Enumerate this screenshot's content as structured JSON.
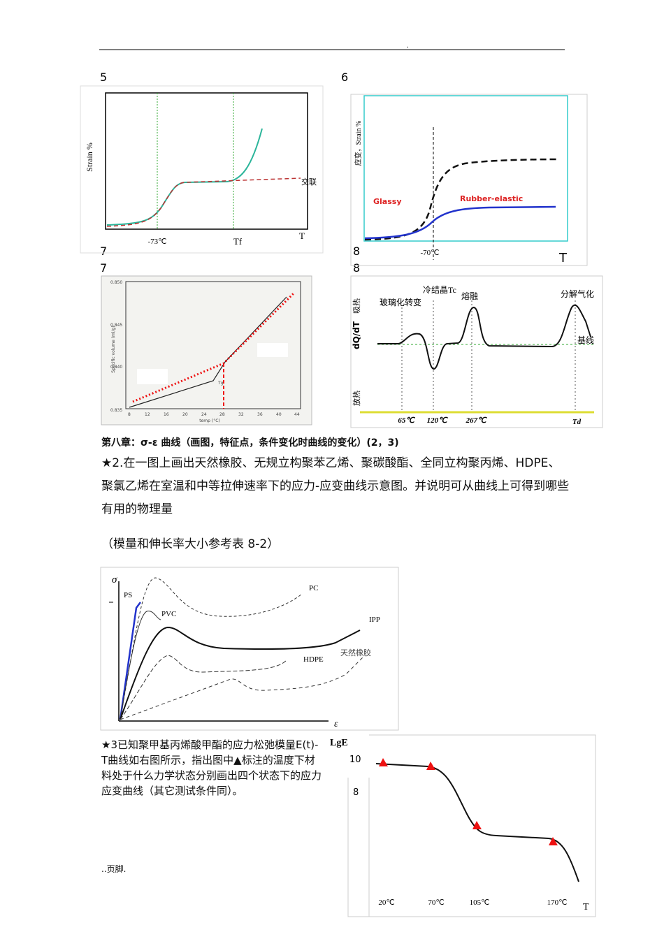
{
  "header": {
    "mark": "."
  },
  "figure_numbers": [
    "5",
    "6",
    "7",
    "8",
    "7",
    "8"
  ],
  "fig5": {
    "y_label": "Strain %",
    "annotation": "交联",
    "x_labels": [
      "-73℃",
      "Tf"
    ],
    "x_axis": "T"
  },
  "fig6": {
    "y_label": "应变，Strain %",
    "annotations": [
      "Glassy",
      "Rubber-elastic"
    ],
    "x_labels": [
      "-70℃"
    ],
    "x_axis": "T"
  },
  "fig7": {
    "y_label": "Specific volume (ml/g)",
    "x_label": "temp (°C)",
    "marker": "Tg",
    "y_ticks": [
      "0.850",
      "0.845",
      "0.840",
      "0.835"
    ],
    "x_ticks": [
      "8",
      "12",
      "16",
      "20",
      "24",
      "28",
      "32",
      "36",
      "40",
      "44"
    ]
  },
  "fig8": {
    "y_top": "吸热",
    "y_label": "dQ/dT",
    "y_bottom": "放热",
    "annotations": [
      "玻璃化转变",
      "冷结晶Tc",
      "熔融",
      "分解气化",
      "基线"
    ],
    "x_labels": [
      "65℃",
      "120℃",
      "267℃",
      "Td"
    ]
  },
  "chapter": {
    "heading": "第八章：σ-ε 曲线（画图，特征点，条件变化时曲线的变化）(2，3)",
    "question2": "★2.在一图上画出天然橡胶、无规立构聚苯乙烯、聚碳酸酯、全同立构聚丙烯、HDPE、聚氯乙烯在室温和中等拉伸速率下的应力-应变曲线示意图。并说明可从曲线上可得到哪些有用的物理量",
    "note": "（模量和伸长率大小参考表 8-2）",
    "question3": "★3已知聚甲基丙烯酸甲酯的应力松弛模量E(t)-T曲线如右图所示，指出图中▲标注的温度下材料处于什么力学状态分别画出四个状态下的应力应变曲线（其它测试条件同）。"
  },
  "stress_strain": {
    "y_axis": "σ",
    "x_axis": "ε",
    "labels": [
      "PS",
      "PVC",
      "PC",
      "IPP",
      "HDPE",
      "天然橡胶"
    ]
  },
  "modulus_fig": {
    "y_label": "LgE",
    "y_values": [
      "10",
      "8"
    ],
    "x_labels": [
      "20℃",
      "70℃",
      "105℃",
      "170℃"
    ],
    "x_axis": "T"
  },
  "footer": {
    "text": "..页脚."
  }
}
